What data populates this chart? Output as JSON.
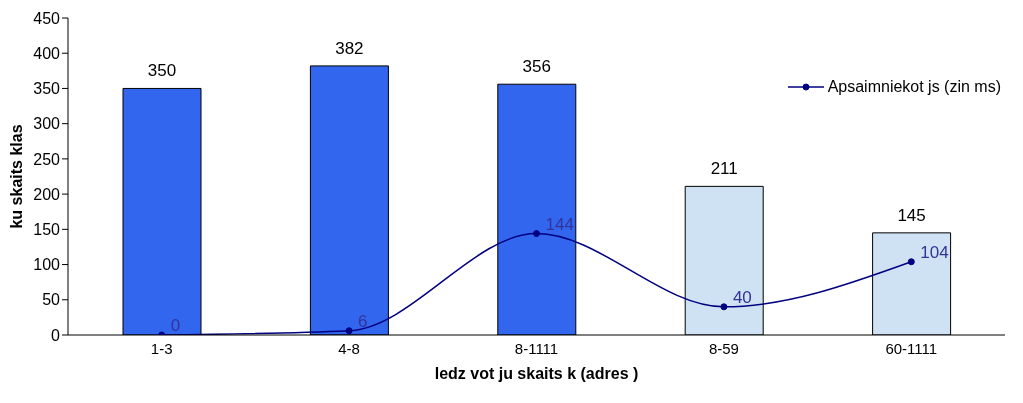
{
  "chart_data": {
    "type": "bar",
    "xlabel": "ledz vot  ju skaits   k   (adres  )",
    "ylabel": "ku skaits klas",
    "categories": [
      "1-3",
      "4-8",
      "8-1111",
      "8-59",
      "60-1111"
    ],
    "series": [
      {
        "colors": [
          "#3366ee",
          "#3366ee",
          "#3366ee",
          "#cfe2f3",
          "#cfe2f3"
        ],
        "values": [
          350,
          382,
          356,
          211,
          145
        ]
      },
      {
        "type": "line",
        "name": "Apsaimniekot  js (zin  ms)",
        "color": "#000080",
        "values": [
          0,
          6,
          144,
          40,
          104
        ]
      }
    ],
    "ylim": [
      0,
      450
    ],
    "yticks": [
      0,
      50,
      100,
      150,
      200,
      250,
      300,
      350,
      400,
      450
    ],
    "data_labels": true,
    "legend": "top right",
    "marker": "circle",
    "line_style": "solid",
    "grid": false
  }
}
